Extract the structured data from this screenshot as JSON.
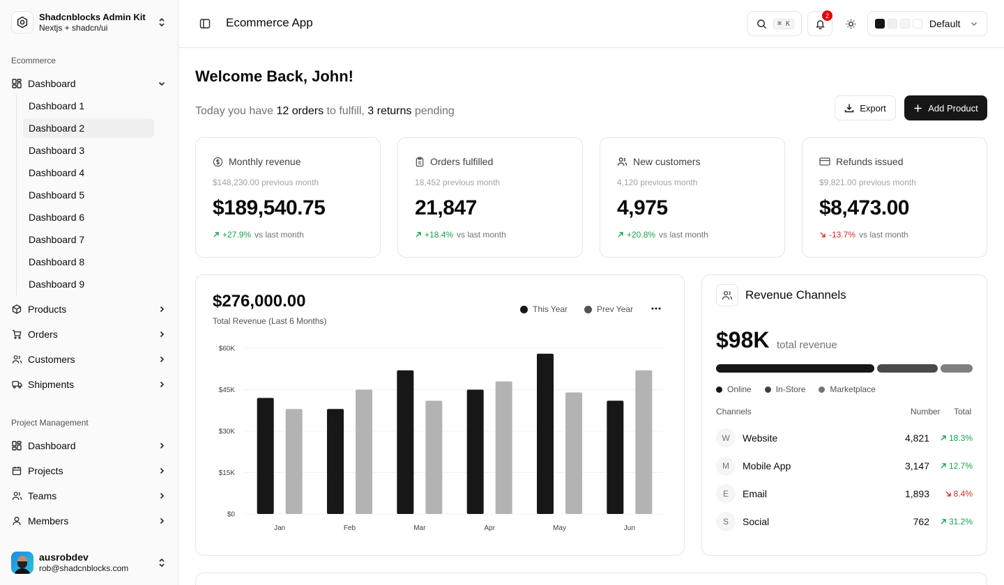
{
  "sidebar": {
    "brand": {
      "title": "Shadcnblocks Admin Kit",
      "subtitle": "Nextjs + shadcn/ui"
    },
    "group1_label": "Ecommerce",
    "dashboard_label": "Dashboard",
    "dashboard_sub": [
      "Dashboard 1",
      "Dashboard 2",
      "Dashboard 3",
      "Dashboard 4",
      "Dashboard 5",
      "Dashboard 6",
      "Dashboard 7",
      "Dashboard 8",
      "Dashboard 9"
    ],
    "active_sub": "Dashboard 2",
    "ecommerce_items": [
      {
        "label": "Products",
        "icon": "package-icon"
      },
      {
        "label": "Orders",
        "icon": "cart-icon"
      },
      {
        "label": "Customers",
        "icon": "users-icon"
      },
      {
        "label": "Shipments",
        "icon": "truck-icon"
      }
    ],
    "group2_label": "Project Management",
    "pm_items": [
      {
        "label": "Dashboard",
        "icon": "layout-icon"
      },
      {
        "label": "Projects",
        "icon": "calendar-icon"
      },
      {
        "label": "Teams",
        "icon": "users-icon"
      },
      {
        "label": "Members",
        "icon": "user-icon"
      }
    ],
    "user": {
      "name": "ausrobdev",
      "email": "rob@shadcnblocks.com"
    }
  },
  "header": {
    "title": "Ecommerce App",
    "search_shortcut": "⌘ K",
    "notification_count": "2",
    "theme_label": "Default",
    "theme_swatches": [
      "#171717",
      "#f0f0f0",
      "#f5f5f5",
      "#ffffff"
    ]
  },
  "welcome": {
    "title": "Welcome Back, John!",
    "line_prefix": "Today you have ",
    "orders": "12 orders",
    "line_mid": " to fulfill, ",
    "returns": "3 returns",
    "line_suffix": " pending",
    "export_label": "Export",
    "add_label": "Add Product"
  },
  "stats": [
    {
      "label": "Monthly revenue",
      "icon": "dollar-circle-icon",
      "previous": "$148,230.00 previous month",
      "value": "$189,540.75",
      "delta": "+27.9%",
      "direction": "up",
      "vs": "vs last month"
    },
    {
      "label": "Orders fulfilled",
      "icon": "clipboard-icon",
      "previous": "18,452 previous month",
      "value": "21,847",
      "delta": "+18.4%",
      "direction": "up",
      "vs": "vs last month"
    },
    {
      "label": "New customers",
      "icon": "users-icon",
      "previous": "4,120 previous month",
      "value": "4,975",
      "delta": "+20.8%",
      "direction": "up",
      "vs": "vs last month"
    },
    {
      "label": "Refunds issued",
      "icon": "credit-card-icon",
      "previous": "$9,821.00 previous month",
      "value": "$8,473.00",
      "delta": "-13.7%",
      "direction": "down",
      "vs": "vs last month"
    }
  ],
  "revenue_chart": {
    "total": "$276,000.00",
    "subtitle": "Total Revenue (Last 6 Months)",
    "legend": [
      "This Year",
      "Prev Year"
    ]
  },
  "chart_data": {
    "type": "bar",
    "categories": [
      "Jan",
      "Feb",
      "Mar",
      "Apr",
      "May",
      "Jun"
    ],
    "series": [
      {
        "name": "This Year",
        "values": [
          42000,
          38000,
          52000,
          45000,
          58000,
          41000
        ],
        "color": "#171717"
      },
      {
        "name": "Prev Year",
        "values": [
          38000,
          45000,
          41000,
          48000,
          44000,
          52000
        ],
        "color": "#b3b3b3"
      }
    ],
    "y_ticks": [
      "$0",
      "$15K",
      "$30K",
      "$45K",
      "$60K"
    ],
    "ylim": [
      0,
      60000
    ],
    "grid": true
  },
  "channels": {
    "title": "Revenue Channels",
    "total": "$98K",
    "total_label": "total revenue",
    "segments": [
      {
        "name": "Online",
        "share": 0.62,
        "color": "#171717"
      },
      {
        "name": "In-Store",
        "share": 0.24,
        "color": "#4a4a4a"
      },
      {
        "name": "Marketplace",
        "share": 0.125,
        "color": "#808080"
      }
    ],
    "headers": {
      "channels": "Channels",
      "number": "Number",
      "total": "Total"
    },
    "rows": [
      {
        "letter": "W",
        "name": "Website",
        "number": "4,821",
        "pct": "18.3%",
        "direction": "up"
      },
      {
        "letter": "M",
        "name": "Mobile App",
        "number": "3,147",
        "pct": "12.7%",
        "direction": "up"
      },
      {
        "letter": "E",
        "name": "Email",
        "number": "1,893",
        "pct": "8.4%",
        "direction": "down"
      },
      {
        "letter": "S",
        "name": "Social",
        "number": "762",
        "pct": "31.2%",
        "direction": "up"
      }
    ]
  }
}
